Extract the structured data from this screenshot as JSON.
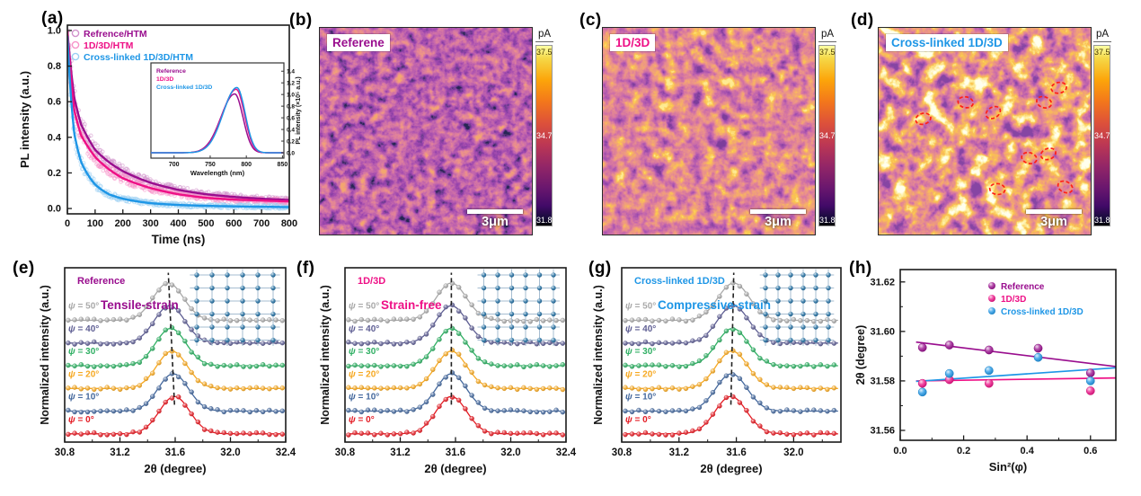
{
  "colors": {
    "purple": "#990D8E",
    "magenta": "#EE1086",
    "blue": "#1E96E6",
    "annotation_red": "#FF2015",
    "lattice_atom": "#1B699E"
  },
  "panels": {
    "a": {
      "label": "(a)"
    },
    "b": {
      "label": "(b)",
      "title": "Referene",
      "title_color": "#990D8E",
      "scalebar": "3μm",
      "colorbar": {
        "unit": "pA",
        "max": "37.5",
        "mid": "34.7",
        "min": "31.8"
      }
    },
    "c": {
      "label": "(c)",
      "title": "1D/3D",
      "title_color": "#EE1086",
      "scalebar": "3μm",
      "colorbar": {
        "unit": "pA",
        "max": "37.5",
        "mid": "34.7",
        "min": "31.8"
      }
    },
    "d": {
      "label": "(d)",
      "title": "Cross-linked 1D/3D",
      "title_color": "#1E96E6",
      "scalebar": "3μm",
      "colorbar": {
        "unit": "pA",
        "max": "37.5",
        "mid": "34.7",
        "min": "31.8"
      },
      "circles": [
        [
          0.21,
          0.44
        ],
        [
          0.41,
          0.36
        ],
        [
          0.54,
          0.41
        ],
        [
          0.78,
          0.36
        ],
        [
          0.85,
          0.29
        ],
        [
          0.71,
          0.63
        ],
        [
          0.8,
          0.61
        ],
        [
          0.56,
          0.78
        ],
        [
          0.88,
          0.77
        ]
      ]
    },
    "e": {
      "label": "(e)"
    },
    "f": {
      "label": "(f)"
    },
    "g": {
      "label": "(g)"
    },
    "h": {
      "label": "(h)"
    }
  },
  "chart_data": {
    "pl_decay": {
      "id": "a",
      "type": "line",
      "xlabel": "Time (ns)",
      "ylabel": "PL intensity (a.u.)",
      "xlim": [
        0,
        800
      ],
      "ylim": [
        -0.03,
        1.03
      ],
      "xticks": [
        0,
        100,
        200,
        300,
        400,
        500,
        600,
        700,
        800
      ],
      "yticks": [
        "0.0",
        "0.2",
        "0.4",
        "0.6",
        "0.8",
        "1.0"
      ],
      "legend_position": "top-left-inside",
      "t_samples": [
        0,
        25,
        50,
        100,
        150,
        200,
        300,
        400,
        500,
        600,
        700,
        800
      ],
      "series": [
        {
          "name": "Refrence/HTM",
          "color": "#990D8E",
          "y": [
            1.0,
            0.62,
            0.47,
            0.33,
            0.26,
            0.21,
            0.145,
            0.105,
            0.08,
            0.065,
            0.055,
            0.048
          ]
        },
        {
          "name": "1D/3D/HTM",
          "color": "#EE1086",
          "y": [
            1.0,
            0.55,
            0.41,
            0.29,
            0.22,
            0.17,
            0.115,
            0.08,
            0.06,
            0.05,
            0.045,
            0.04
          ]
        },
        {
          "name": "Cross-linked 1D/3D/HTM",
          "color": "#1E96E6",
          "y": [
            0.97,
            0.42,
            0.26,
            0.135,
            0.08,
            0.055,
            0.03,
            0.02,
            0.015,
            0.012,
            0.01,
            0.008
          ]
        }
      ]
    },
    "pl_spectra_inset": {
      "id": "a_inset",
      "type": "line",
      "xlabel": "Wavelength (nm)",
      "ylabel": "PL intensity (×10⁵ a.u.)",
      "xlim": [
        668,
        852
      ],
      "xticks": [
        700,
        750,
        800,
        850
      ],
      "yticks": [
        "0.0",
        "0.2",
        "0.4",
        "0.6",
        "0.8",
        "1.0",
        "1.2",
        "1.4"
      ],
      "series": [
        {
          "name": "Reference",
          "color": "#990D8E",
          "peak_nm": 784,
          "height": 1.01
        },
        {
          "name": "1D/3D",
          "color": "#EE1086",
          "peak_nm": 786,
          "height": 1.09
        },
        {
          "name": "Cross-linked 1D/3D",
          "color": "#1E96E6",
          "peak_nm": 787,
          "height": 1.12
        }
      ]
    },
    "xrd_panels": [
      {
        "id": "e",
        "type": "line",
        "title": "Reference",
        "subtitle": "Tensile-strain",
        "accent": "#990D8E",
        "xlabel": "2θ (degree)",
        "ylabel": "Normalized intensity (a.u.)",
        "xlim": [
          30.8,
          32.4
        ],
        "xticks": [
          "30.8",
          "31.2",
          "31.6",
          "32.0",
          "32.4"
        ],
        "strain_direction": "tensile",
        "psi_series": [
          {
            "label": "ψ = 0°",
            "color": "#E41B23",
            "peak_center": 31.595
          },
          {
            "label": "ψ = 10°",
            "color": "#44689D",
            "peak_center": 31.586
          },
          {
            "label": "ψ = 20°",
            "color": "#F6A821",
            "peak_center": 31.577
          },
          {
            "label": "ψ = 30°",
            "color": "#2FAF63",
            "peak_center": 31.568
          },
          {
            "label": "ψ = 40°",
            "color": "#5E5E93",
            "peak_center": 31.559
          },
          {
            "label": "ψ = 50°",
            "color": "#A9A9A9",
            "peak_center": 31.55
          }
        ]
      },
      {
        "id": "f",
        "type": "line",
        "title": "1D/3D",
        "subtitle": "Strain-free",
        "accent": "#EE1086",
        "xlabel": "2θ (degree)",
        "ylabel": "Normalized intensity (a.u.)",
        "xlim": [
          30.8,
          32.4
        ],
        "xticks": [
          "30.8",
          "31.2",
          "31.6",
          "32.0",
          "32.4"
        ],
        "strain_direction": "none",
        "psi_series": [
          {
            "label": "ψ = 0°",
            "color": "#E41B23",
            "peak_center": 31.57
          },
          {
            "label": "ψ = 10°",
            "color": "#44689D",
            "peak_center": 31.57
          },
          {
            "label": "ψ = 20°",
            "color": "#F6A821",
            "peak_center": 31.57
          },
          {
            "label": "ψ = 30°",
            "color": "#2FAF63",
            "peak_center": 31.57
          },
          {
            "label": "ψ = 40°",
            "color": "#5E5E93",
            "peak_center": 31.57
          },
          {
            "label": "ψ = 50°",
            "color": "#A9A9A9",
            "peak_center": 31.57
          }
        ]
      },
      {
        "id": "g",
        "type": "line",
        "title": "Cross-linked 1D/3D",
        "subtitle": "Compressive-strain",
        "accent": "#1E96E6",
        "xlabel": "2θ (degree)",
        "ylabel": "Normalized intensity (a.u.)",
        "xlim": [
          30.8,
          32.33
        ],
        "xticks": [
          "30.8",
          "31.2",
          "31.6",
          "32.0"
        ],
        "strain_direction": "compressive",
        "psi_series": [
          {
            "label": "ψ = 0°",
            "color": "#E41B23",
            "peak_center": 31.562
          },
          {
            "label": "ψ = 10°",
            "color": "#44689D",
            "peak_center": 31.566
          },
          {
            "label": "ψ = 20°",
            "color": "#F6A821",
            "peak_center": 31.57
          },
          {
            "label": "ψ = 30°",
            "color": "#2FAF63",
            "peak_center": 31.574
          },
          {
            "label": "ψ = 40°",
            "color": "#5E5E93",
            "peak_center": 31.578
          },
          {
            "label": "ψ = 50°",
            "color": "#A9A9A9",
            "peak_center": 31.582
          }
        ]
      }
    ],
    "sin2psi": {
      "id": "h",
      "type": "scatter",
      "xlabel": "Sin²(φ)",
      "ylabel": "2θ (degree)",
      "xlim": [
        0,
        0.68
      ],
      "ylim": [
        31.556,
        31.625
      ],
      "xticks": [
        "0.0",
        "0.2",
        "0.4",
        "0.6"
      ],
      "yticks": [
        "31.56",
        "31.58",
        "31.60",
        "31.62"
      ],
      "legend_position": "top-right-inside",
      "series": [
        {
          "name": "Reference",
          "color": "#990D8E",
          "points": [
            [
              0.07,
              31.5935
            ],
            [
              0.155,
              31.5945
            ],
            [
              0.28,
              31.5925
            ],
            [
              0.435,
              31.5932
            ],
            [
              0.6,
              31.5832
            ]
          ],
          "fit": [
            [
              0.05,
              31.5957
            ],
            [
              0.68,
              31.5858
            ]
          ]
        },
        {
          "name": "1D/3D",
          "color": "#EE1086",
          "points": [
            [
              0.07,
              31.579
            ],
            [
              0.155,
              31.5805
            ],
            [
              0.28,
              31.579
            ],
            [
              0.6,
              31.576
            ]
          ],
          "fit": [
            [
              0.05,
              31.58
            ],
            [
              0.68,
              31.5812
            ]
          ]
        },
        {
          "name": "Cross-linked 1D/3D",
          "color": "#1E96E6",
          "points": [
            [
              0.07,
              31.5755
            ],
            [
              0.155,
              31.583
            ],
            [
              0.28,
              31.5842
            ],
            [
              0.435,
              31.5895
            ],
            [
              0.6,
              31.58
            ]
          ],
          "fit": [
            [
              0.05,
              31.5798
            ],
            [
              0.68,
              31.5853
            ]
          ]
        }
      ]
    }
  }
}
